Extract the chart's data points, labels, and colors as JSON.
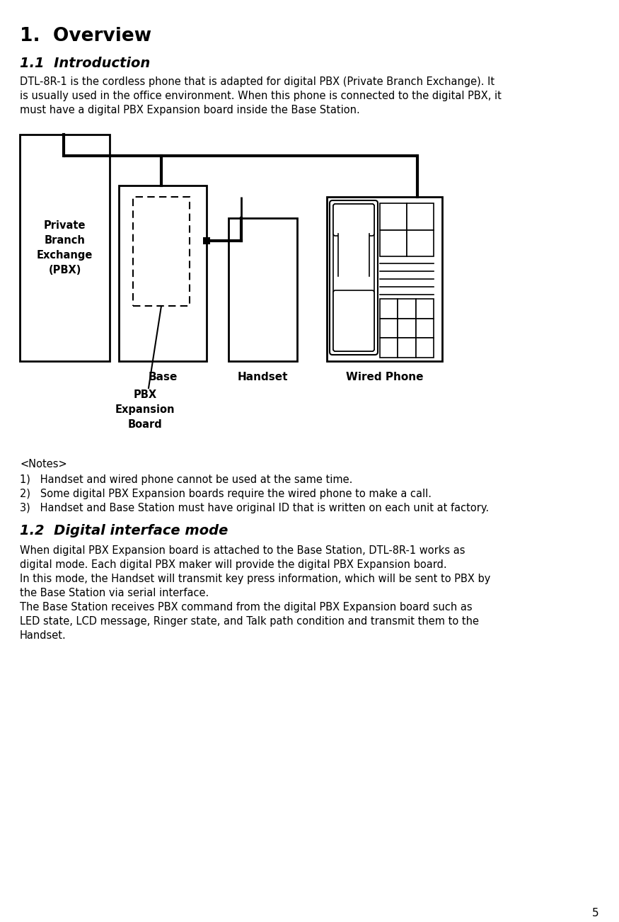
{
  "title": "1.  Overview",
  "section1_title": "1.1  Introduction",
  "section1_body": "DTL-8R-1 is the cordless phone that is adapted for digital PBX (Private Branch Exchange). It\nis usually used in the office environment. When this phone is connected to the digital PBX, it\nmust have a digital PBX Expansion board inside the Base Station.",
  "pbx_label": "Private\nBranch\nExchange\n(PBX)",
  "base_label": "Base",
  "pbx_board_label": "PBX\nExpansion\nBoard",
  "handset_label": "Handset",
  "wired_phone_label": "Wired Phone",
  "notes_header": "<Notes>",
  "notes": [
    "1)   Handset and wired phone cannot be used at the same time.",
    "2)   Some digital PBX Expansion boards require the wired phone to make a call.",
    "3)   Handset and Base Station must have original ID that is written on each unit at factory."
  ],
  "section2_title": "1.2  Digital interface mode",
  "section2_body": "When digital PBX Expansion board is attached to the Base Station, DTL-8R-1 works as\ndigital mode. Each digital PBX maker will provide the digital PBX Expansion board.\nIn this mode, the Handset will transmit key press information, which will be sent to PBX by\nthe Base Station via serial interface.\nThe Base Station receives PBX command from the digital PBX Expansion board such as\nLED state, LCD message, Ringer state, and Talk path condition and transmit them to the\nHandset.",
  "page_number": "5",
  "bg_color": "#ffffff",
  "text_color": "#000000"
}
